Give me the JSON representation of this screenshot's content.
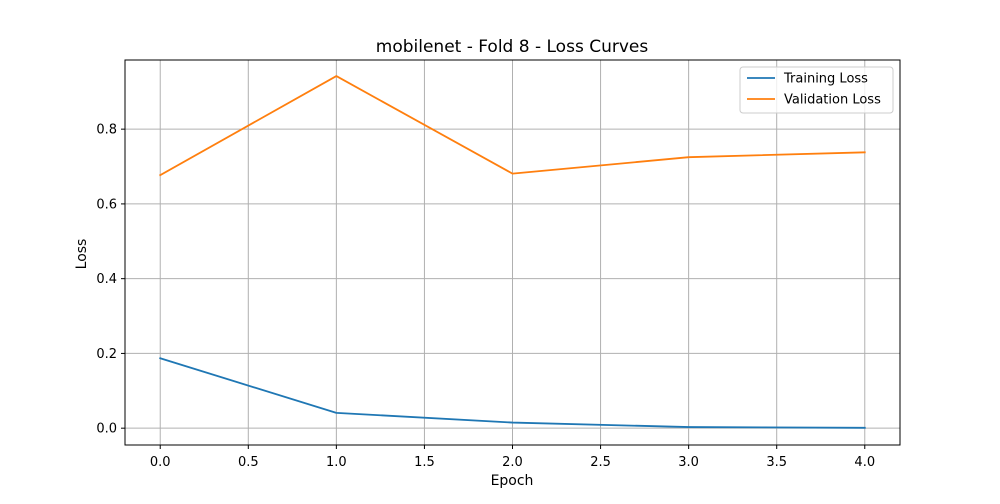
{
  "chart_data": {
    "type": "line",
    "title": "mobilenet - Fold 8 - Loss Curves",
    "xlabel": "Epoch",
    "ylabel": "Loss",
    "xlim": [
      -0.2,
      4.2
    ],
    "ylim": [
      -0.045,
      0.985
    ],
    "x_ticks": [
      0.0,
      0.5,
      1.0,
      1.5,
      2.0,
      2.5,
      3.0,
      3.5,
      4.0
    ],
    "x_tick_labels": [
      "0.0",
      "0.5",
      "1.0",
      "1.5",
      "2.0",
      "2.5",
      "3.0",
      "3.5",
      "4.0"
    ],
    "y_ticks": [
      0.0,
      0.2,
      0.4,
      0.6,
      0.8
    ],
    "y_tick_labels": [
      "0.0",
      "0.2",
      "0.4",
      "0.6",
      "0.8"
    ],
    "grid": true,
    "legend_position": "top-right",
    "x": [
      0,
      1,
      2,
      3,
      4
    ],
    "series": [
      {
        "name": "Training Loss",
        "color": "#1f77b4",
        "values": [
          0.187,
          0.041,
          0.015,
          0.003,
          0.001
        ]
      },
      {
        "name": "Validation Loss",
        "color": "#ff7f0e",
        "values": [
          0.677,
          0.942,
          0.681,
          0.725,
          0.738
        ]
      }
    ]
  }
}
